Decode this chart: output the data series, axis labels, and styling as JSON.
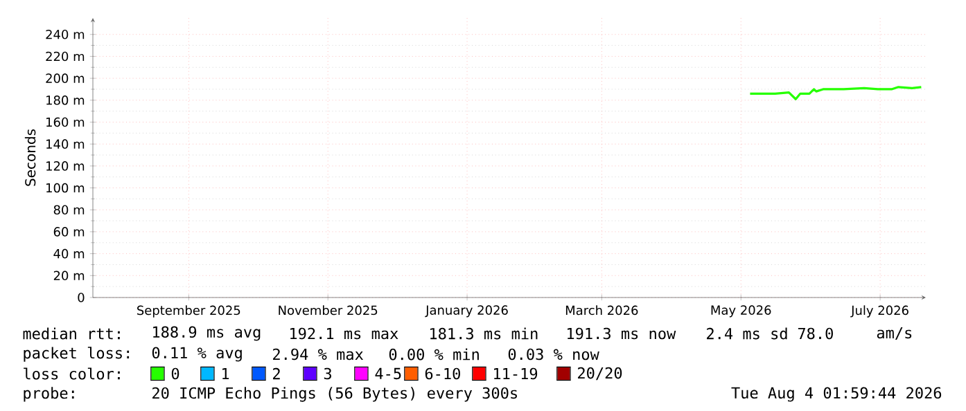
{
  "chart_data": {
    "type": "line",
    "ylabel": "Seconds",
    "x": [
      "2026-05-19",
      "2026-05-23",
      "2026-05-30",
      "2026-06-05",
      "2026-06-08",
      "2026-06-10",
      "2026-06-14",
      "2026-06-16",
      "2026-06-17",
      "2026-06-20",
      "2026-06-29",
      "2026-07-08",
      "2026-07-14",
      "2026-07-20",
      "2026-07-23",
      "2026-07-29",
      "2026-08-02"
    ],
    "series": [
      {
        "color": "#26ff00",
        "values": [
          186,
          186,
          186,
          187,
          181,
          186,
          186,
          190,
          188,
          190,
          190,
          191,
          190,
          190,
          192,
          191,
          192
        ]
      }
    ],
    "xlim": [
      "2025-08-04",
      "2026-08-04"
    ],
    "xticks": [
      {
        "value": "2025-09-15",
        "label": "September 2025"
      },
      {
        "value": "2025-11-15",
        "label": "November 2025"
      },
      {
        "value": "2026-01-15",
        "label": "January 2026"
      },
      {
        "value": "2026-03-15",
        "label": "March 2026"
      },
      {
        "value": "2026-05-15",
        "label": "May 2026"
      },
      {
        "value": "2026-07-15",
        "label": "July 2026"
      }
    ],
    "ylim": [
      0,
      255
    ],
    "yticks": [
      0,
      {
        "value": 20,
        "label": "20 m"
      },
      {
        "value": 40,
        "label": "40 m"
      },
      {
        "value": 60,
        "label": "60 m"
      },
      {
        "value": 80,
        "label": "80 m"
      },
      {
        "value": 100,
        "label": "100 m"
      },
      {
        "value": 120,
        "label": "120 m"
      },
      {
        "value": 140,
        "label": "140 m"
      },
      {
        "value": 160,
        "label": "160 m"
      },
      {
        "value": 180,
        "label": "180 m"
      },
      {
        "value": 200,
        "label": "200 m"
      },
      {
        "value": 220,
        "label": "220 m"
      },
      {
        "value": 240,
        "label": "240 m"
      }
    ],
    "grid": true,
    "annotations": [
      "median rtt:",
      "188.9 ms avg",
      "192.1 ms max",
      "181.3 ms min",
      "191.3 ms now",
      "2.4 ms sd",
      "78.0",
      "am/s",
      "packet loss:",
      "0.11 % avg",
      "2.94 % max",
      "0.00 % min",
      "0.03 % now",
      "loss color:",
      "0",
      "1",
      "2",
      "3",
      "4-5",
      "6-10",
      "11-19",
      "20/20",
      "probe:",
      "20 ICMP Echo Pings (56 Bytes) every 300s",
      "Tue Aug  4 01:59:44 2026"
    ]
  }
}
